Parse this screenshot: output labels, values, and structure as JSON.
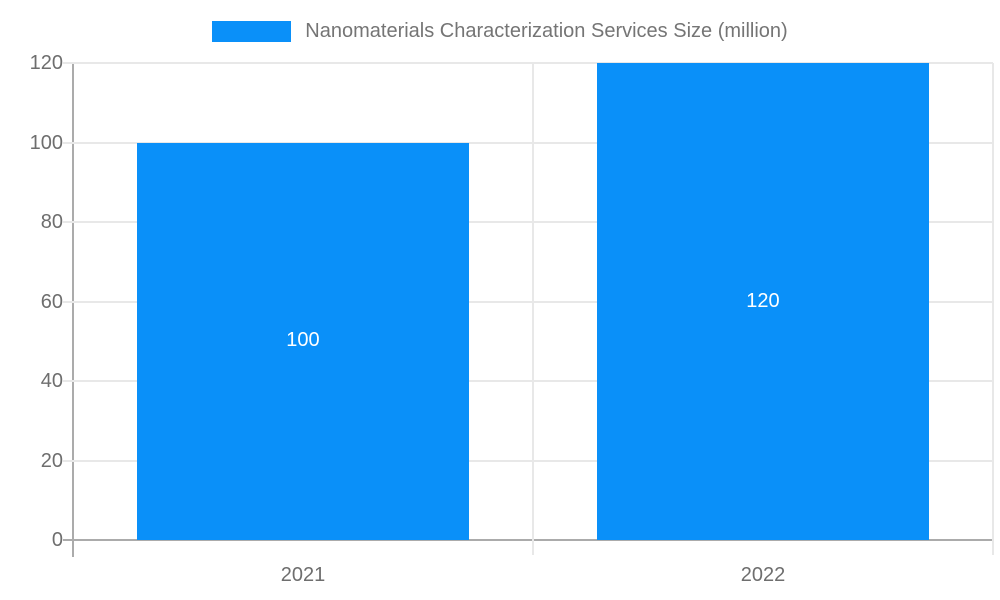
{
  "legend": {
    "label": "Nanomaterials Characterization Services Size (million)"
  },
  "colors": {
    "bar": "#0a90f9",
    "grid": "#e8e8e8",
    "axis": "#ababab",
    "tick_text": "#6e6e6e",
    "legend_text": "#757575",
    "bar_label_text": "#ffffff",
    "background": "#ffffff"
  },
  "chart_data": {
    "type": "bar",
    "title": "Nanomaterials Characterization Services Size (million)",
    "categories": [
      "2021",
      "2022"
    ],
    "values": [
      100,
      120
    ],
    "data_labels": [
      "100",
      "120"
    ],
    "xlabel": "",
    "ylabel": "",
    "ylim": [
      0,
      120
    ],
    "yticks": [
      0,
      20,
      40,
      60,
      80,
      100,
      120
    ],
    "grid": true,
    "legend_position": "top",
    "bar_width_fraction": 0.72
  }
}
